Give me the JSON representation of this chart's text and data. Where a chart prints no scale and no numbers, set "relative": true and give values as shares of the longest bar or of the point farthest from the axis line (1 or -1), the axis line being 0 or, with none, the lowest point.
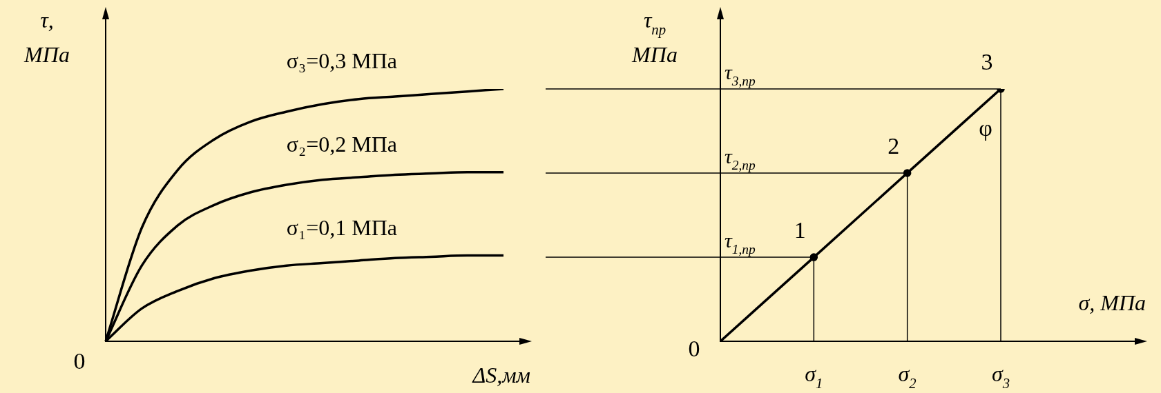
{
  "chart_data": [
    {
      "type": "line",
      "relative": true,
      "xlabel": "ΔS,мм",
      "ylabel": "τ, МПа",
      "categories": [
        null,
        null,
        null,
        null,
        null,
        null,
        null,
        null,
        null,
        null,
        null,
        null
      ],
      "marker": "none",
      "series": [
        {
          "name": "σ₃=0,3 МПа",
          "color": "#000000",
          "values": [
            0,
            0.45,
            0.68,
            0.8,
            0.87,
            0.91,
            0.94,
            0.96,
            0.97,
            0.98,
            0.99,
            1
          ]
        },
        {
          "name": "σ₂=0,2 МПа",
          "color": "#000000",
          "values": [
            0,
            0.3,
            0.46,
            0.54,
            0.59,
            0.62,
            0.64,
            0.65,
            0.66,
            0.665,
            0.67,
            0.67
          ]
        },
        {
          "name": "σ₁=0,1 МПа",
          "color": "#000000",
          "values": [
            0,
            0.13,
            0.2,
            0.25,
            0.28,
            0.3,
            0.31,
            0.32,
            0.33,
            0.335,
            0.34,
            0.34
          ]
        }
      ],
      "annotations": [
        "0"
      ]
    },
    {
      "type": "line",
      "relative": true,
      "xlabel": "σ, МПа",
      "ylabel": "τ$_{пр}$ МПа",
      "categories": [
        null,
        "σ$_{1}$",
        "σ$_{2}$",
        "σ$_{3}$"
      ],
      "marker": "circle",
      "series": [
        {
          "color": "#000000",
          "values": [
            0,
            0.333,
            0.667,
            1
          ]
        }
      ],
      "ref_lines": [
        {
          "axis": "y",
          "value": 0.333,
          "label": "τ$_{1,пр}$"
        },
        {
          "axis": "y",
          "value": 0.667,
          "label": "τ$_{2,пр}$"
        },
        {
          "axis": "y",
          "value": 1,
          "label": "τ$_{3,пр}$"
        },
        {
          "axis": "x",
          "value": "σ$_{1}$"
        },
        {
          "axis": "x",
          "value": "σ$_{2}$"
        },
        {
          "axis": "x",
          "value": "σ$_{3}$"
        }
      ],
      "annotations": [
        {
          "text": "1",
          "x": "σ$_{1}$",
          "y": 0.333
        },
        {
          "text": "2",
          "x": "σ$_{2}$",
          "y": 0.667
        },
        {
          "text": "3",
          "x": "σ$_{3}$",
          "y": 1
        },
        "φ",
        "0"
      ]
    }
  ]
}
